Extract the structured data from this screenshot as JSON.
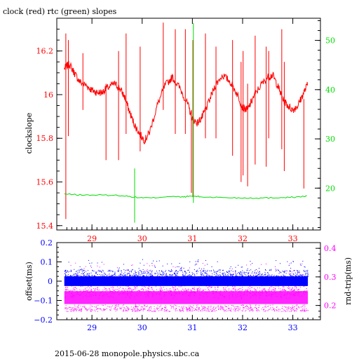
{
  "title": "clock (red) rtc (green) slopes",
  "footer": "2015-06-28 monopole.physics.ubc.ca",
  "colors": {
    "red": "#ff0000",
    "green": "#00dd00",
    "blue": "#0000ff",
    "magenta": "#ff00ff",
    "axis": "#000000"
  },
  "chart_data": [
    {
      "type": "line",
      "ylabel": "clockslope",
      "y2label": "",
      "xlim": [
        28.3,
        33.55
      ],
      "ylim": [
        15.38,
        16.35
      ],
      "y2lim": [
        11.5,
        54.5
      ],
      "x_ticks": [
        29,
        30,
        31,
        32,
        33
      ],
      "x_tick_labels": [
        "29",
        "30",
        "31",
        "32",
        "33"
      ],
      "y_ticks": [
        15.4,
        15.6,
        15.8,
        16.0,
        16.2
      ],
      "y_tick_labels": [
        "15.4",
        "15.6",
        "15.8",
        "16",
        "16.2"
      ],
      "y2_ticks": [
        20,
        30,
        40,
        50
      ],
      "y2_tick_labels": [
        "20",
        "30",
        "40",
        "50"
      ],
      "series": [
        {
          "color": "#ff0000",
          "x": [
            28.45,
            28.55,
            28.65,
            28.75,
            28.9,
            29.0,
            29.1,
            29.2,
            29.3,
            29.45,
            29.55,
            29.65,
            29.75,
            29.85,
            29.95,
            30.05,
            30.15,
            30.3,
            30.45,
            30.6,
            30.75,
            30.9,
            31.0,
            31.1,
            31.2,
            31.3,
            31.45,
            31.6,
            31.75,
            31.9,
            32.0,
            32.1,
            32.2,
            32.35,
            32.5,
            32.6,
            32.7,
            32.8,
            32.9,
            33.0,
            33.1,
            33.2,
            33.3
          ],
          "y": [
            16.12,
            16.14,
            16.1,
            16.06,
            16.04,
            16.02,
            16.01,
            16.01,
            16.03,
            16.05,
            16.03,
            15.99,
            15.92,
            15.86,
            15.82,
            15.79,
            15.83,
            15.95,
            16.04,
            16.08,
            16.03,
            15.96,
            15.89,
            15.87,
            15.9,
            15.95,
            16.04,
            16.09,
            16.06,
            16.0,
            15.94,
            15.93,
            15.98,
            16.04,
            16.08,
            16.09,
            16.04,
            15.98,
            15.95,
            15.93,
            15.95,
            16.0,
            16.05
          ]
        },
        {
          "color": "#00dd00",
          "axis": "y2",
          "x": [
            28.45,
            28.8,
            29.2,
            29.6,
            29.9,
            30.2,
            30.5,
            30.8,
            31.0,
            31.2,
            31.6,
            32.0,
            32.4,
            32.8,
            33.1,
            33.3
          ],
          "y": [
            18.8,
            18.6,
            18.6,
            18.5,
            18.1,
            18.0,
            18.3,
            18.2,
            18.4,
            18.2,
            18.1,
            18.0,
            18.0,
            18.1,
            18.2,
            18.4
          ]
        }
      ],
      "spikes": [
        {
          "x": 28.48,
          "lo": 15.43,
          "hi": 16.28
        },
        {
          "x": 28.53,
          "lo": 15.81,
          "hi": 16.25
        },
        {
          "x": 28.82,
          "lo": 15.93,
          "hi": 16.19
        },
        {
          "x": 29.28,
          "lo": 15.7,
          "hi": 16.05
        },
        {
          "x": 29.53,
          "lo": 15.7,
          "hi": 16.2
        },
        {
          "x": 29.68,
          "lo": 15.82,
          "hi": 16.28
        },
        {
          "x": 29.96,
          "lo": 15.74,
          "hi": 16.22
        },
        {
          "x": 30.42,
          "lo": 15.93,
          "hi": 16.33
        },
        {
          "x": 30.66,
          "lo": 15.82,
          "hi": 16.3
        },
        {
          "x": 30.86,
          "lo": 15.82,
          "hi": 16.3
        },
        {
          "x": 30.98,
          "lo": 15.55,
          "hi": 15.93
        },
        {
          "x": 31.01,
          "lo": 15.53,
          "hi": 16.25
        },
        {
          "x": 31.26,
          "lo": 15.8,
          "hi": 16.28
        },
        {
          "x": 31.47,
          "lo": 15.8,
          "hi": 16.22
        },
        {
          "x": 31.8,
          "lo": 15.72,
          "hi": 16.25
        },
        {
          "x": 31.97,
          "lo": 15.6,
          "hi": 16.15
        },
        {
          "x": 32.01,
          "lo": 15.63,
          "hi": 16.2
        },
        {
          "x": 32.1,
          "lo": 15.58,
          "hi": 16.05
        },
        {
          "x": 32.25,
          "lo": 15.68,
          "hi": 16.27
        },
        {
          "x": 32.47,
          "lo": 15.67,
          "hi": 16.22
        },
        {
          "x": 32.52,
          "lo": 15.8,
          "hi": 16.2
        },
        {
          "x": 32.78,
          "lo": 15.75,
          "hi": 16.3
        },
        {
          "x": 32.83,
          "lo": 15.65,
          "hi": 16.15
        },
        {
          "x": 33.22,
          "lo": 15.57,
          "hi": 15.98
        }
      ],
      "green_spikes": [
        {
          "x": 29.85,
          "lo": 13.0,
          "hi": 24.0
        },
        {
          "x": 31.02,
          "lo": 17.0,
          "hi": 53.5
        }
      ]
    },
    {
      "type": "scatter",
      "ylabel": "offset(ms)",
      "y2label": "rnd-trip(ms)",
      "xlim": [
        28.3,
        33.55
      ],
      "ylim": [
        -0.2,
        0.2
      ],
      "y2lim": [
        0.15,
        0.42
      ],
      "x_ticks": [
        29,
        30,
        31,
        32,
        33
      ],
      "x_tick_labels": [
        "29",
        "30",
        "31",
        "32",
        "33"
      ],
      "y_ticks": [
        -0.2,
        -0.1,
        0.0,
        0.1,
        0.2
      ],
      "y_tick_labels": [
        "−0.2",
        "−0.1",
        "0",
        "0.1",
        "0.2"
      ],
      "y2_ticks": [
        0.2,
        0.3,
        0.4
      ],
      "y2_tick_labels": [
        "0.2",
        "0.3",
        "0.4"
      ],
      "series": [
        {
          "name": "offset",
          "color": "#0000ff",
          "x_range": [
            28.45,
            33.3
          ],
          "core_range": [
            -0.025,
            0.025
          ],
          "outlier_range": [
            -0.01,
            0.1
          ]
        },
        {
          "name": "rnd-trip",
          "color": "#ff00ff",
          "x_range": [
            28.45,
            33.3
          ],
          "core_range": [
            0.205,
            0.25
          ],
          "outlier_range": [
            0.18,
            0.35
          ]
        }
      ]
    }
  ]
}
